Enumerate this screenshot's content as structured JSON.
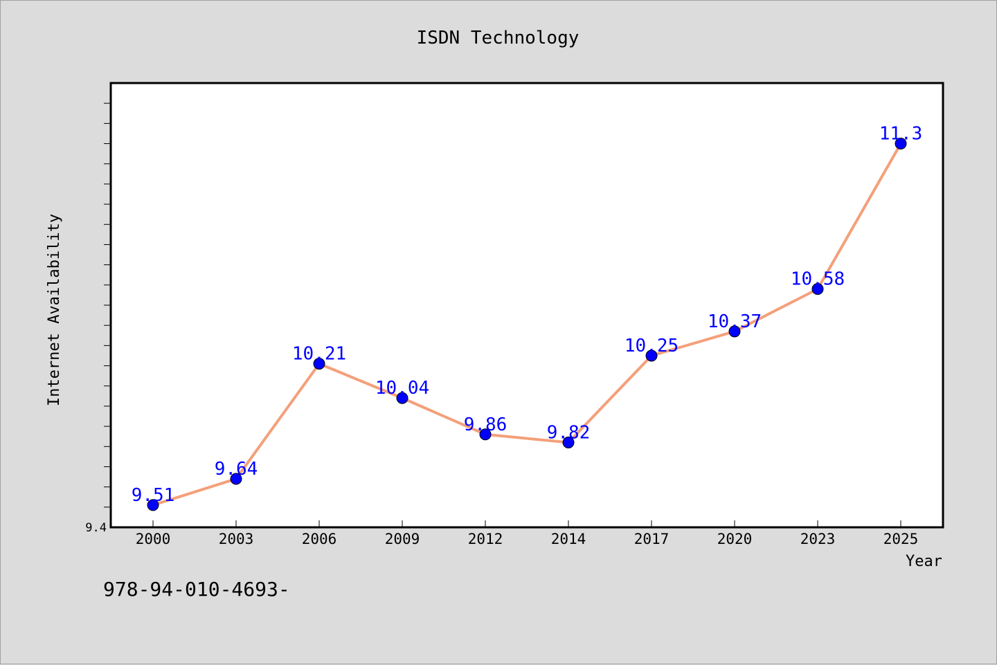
{
  "chart_data": {
    "type": "line",
    "title": "ISDN Technology",
    "xlabel": "Year",
    "ylabel": "Internet Availability",
    "categories": [
      "2000",
      "2003",
      "2006",
      "2009",
      "2012",
      "2014",
      "2017",
      "2020",
      "2023",
      "2025"
    ],
    "series": [
      {
        "values": [
          9.51,
          9.64,
          10.21,
          10.04,
          9.86,
          9.82,
          10.25,
          10.37,
          10.58,
          11.3
        ]
      }
    ],
    "data_labels": [
      "9.51",
      "9.64",
      "10.21",
      "10.04",
      "9.86",
      "9.82",
      "10.25",
      "10.37",
      "10.58",
      "11.3"
    ],
    "ylim": [
      9.4,
      11.6
    ],
    "y_tick_labels": [
      "9.4"
    ],
    "y_minor_tick_step": 0.1,
    "grid": false,
    "colors": {
      "line": "#f4a07a",
      "marker": "#0000ff",
      "data_label": "#0000ff",
      "plot_background": "#ffffff",
      "page_background": "#dcdcdc"
    }
  },
  "footer": {
    "text": "978-94-010-4693-"
  }
}
